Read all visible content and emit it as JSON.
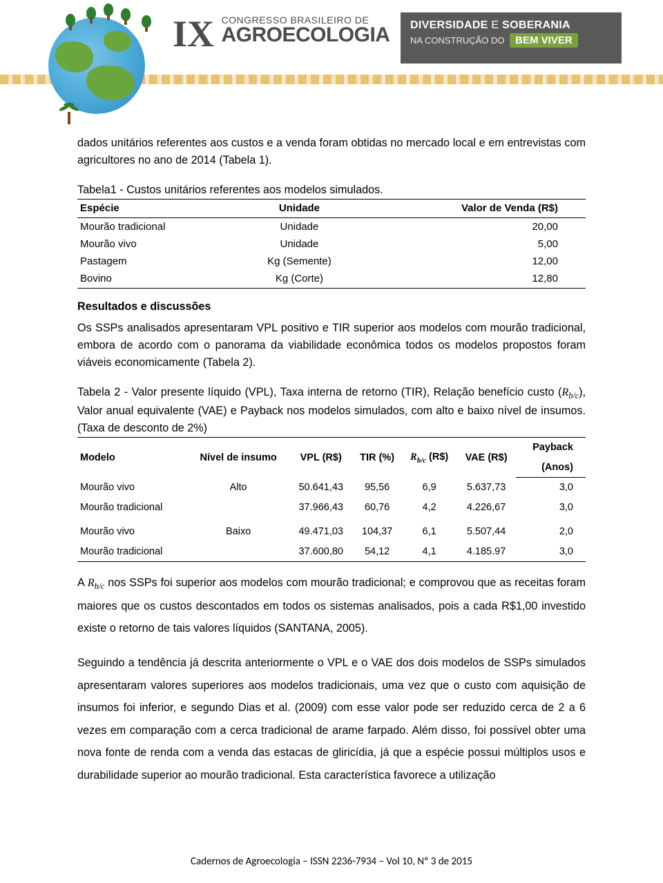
{
  "header": {
    "ix": "IX",
    "line1": "CONGRESSO BRASILEIRO DE",
    "line2": "AGROECOLOGIA",
    "tag_diversidade": "DIVERSIDADE",
    "tag_e": " E ",
    "tag_soberania": "SOBERANIA",
    "tag_construcao": "NA CONSTRUÇÃO DO",
    "tag_bemviver": "BEM VIVER",
    "colors": {
      "header_gray": "#4b4b4b",
      "tag_bg": "#595958",
      "tag_green": "#7aa23c",
      "band": "#e7b95a"
    }
  },
  "intro_para": "dados unitários referentes aos custos e a venda foram obtidas no mercado local e em entrevistas com agricultores no ano de 2014 (Tabela 1).",
  "table1": {
    "caption": "Tabela1 - Custos unitários referentes aos modelos simulados.",
    "columns": [
      "Espécie",
      "Unidade",
      "Valor de Venda (R$)"
    ],
    "rows": [
      [
        "Mourão tradicional",
        "Unidade",
        "20,00"
      ],
      [
        "Mourão vivo",
        "Unidade",
        "5,00"
      ],
      [
        "Pastagem",
        "Kg (Semente)",
        "12,00"
      ],
      [
        "Bovino",
        "Kg (Corte)",
        "12,80"
      ]
    ]
  },
  "results_heading": "Resultados e discussões",
  "results_para": "Os SSPs analisados apresentaram VPL positivo e TIR superior aos modelos com mourão tradicional, embora de acordo com o panorama da viabilidade econômica todos os modelos propostos foram viáveis economicamente (Tabela 2).",
  "table2": {
    "caption_pre": "Tabela 2 - Valor presente líquido (VPL), Taxa interna de retorno (TIR), Relação benefício custo (",
    "caption_rbc": "R",
    "caption_rbc_sub": "b/c",
    "caption_post": "), Valor anual equivalente (VAE) e Payback nos modelos simulados, com alto e baixo nível de insumos. (Taxa de desconto de 2%)",
    "columns": [
      "Modelo",
      "Nível de insumo",
      "VPL (R$)",
      "TIR (%)",
      "R_bc (R$)",
      "VAE (R$)",
      "Payback (Anos)"
    ],
    "col_rbc_pre": " (R$)",
    "col_payback_l1": "Payback",
    "col_payback_l2": "(Anos)",
    "rows": [
      {
        "modelo": "Mourão vivo",
        "insumo": "Alto",
        "vpl": "50.641,43",
        "tir": "95,56",
        "rbc": "6,9",
        "vae": "5.637,73",
        "payback": "3,0"
      },
      {
        "modelo": "Mourão tradicional",
        "insumo": "",
        "vpl": "37.966,43",
        "tir": "60,76",
        "rbc": "4,2",
        "vae": "4.226,67",
        "payback": "3,0"
      },
      {
        "modelo": "Mourão vivo",
        "insumo": "Baixo",
        "vpl": "49.471,03",
        "tir": "104,37",
        "rbc": "6,1",
        "vae": "5.507,44",
        "payback": "2,0"
      },
      {
        "modelo": "Mourão tradicional",
        "insumo": "",
        "vpl": "37.600,80",
        "tir": "54,12",
        "rbc": "4,1",
        "vae": "4.185.97",
        "payback": "3,0"
      }
    ]
  },
  "para_rbc_pre": "A ",
  "para_rbc_post": " nos SSPs foi superior aos modelos com mourão tradicional; e comprovou que as receitas foram maiores que os custos descontados em todos os sistemas analisados, pois a cada R$1,00 investido existe o retorno de tais valores líquidos (SANTANA, 2005).",
  "para_final": "Seguindo a tendência já descrita anteriormente o VPL e o VAE dos dois modelos de SSPs simulados apresentaram valores superiores aos modelos tradicionais, uma vez que o custo com aquisição de insumos foi inferior, e segundo Dias et al. (2009) com esse valor pode ser reduzido cerca de 2 a 6 vezes em comparação com a cerca tradicional de arame farpado. Além disso, foi possível obter uma nova fonte de renda com a venda das estacas de gliricídia, já que a espécie possui múltiplos usos e durabilidade superior ao mourão tradicional. Esta característica favorece a utilização",
  "footer": "Cadernos de Agroecologia – ISSN 2236-7934 – Vol 10, Nº 3 de 2015"
}
